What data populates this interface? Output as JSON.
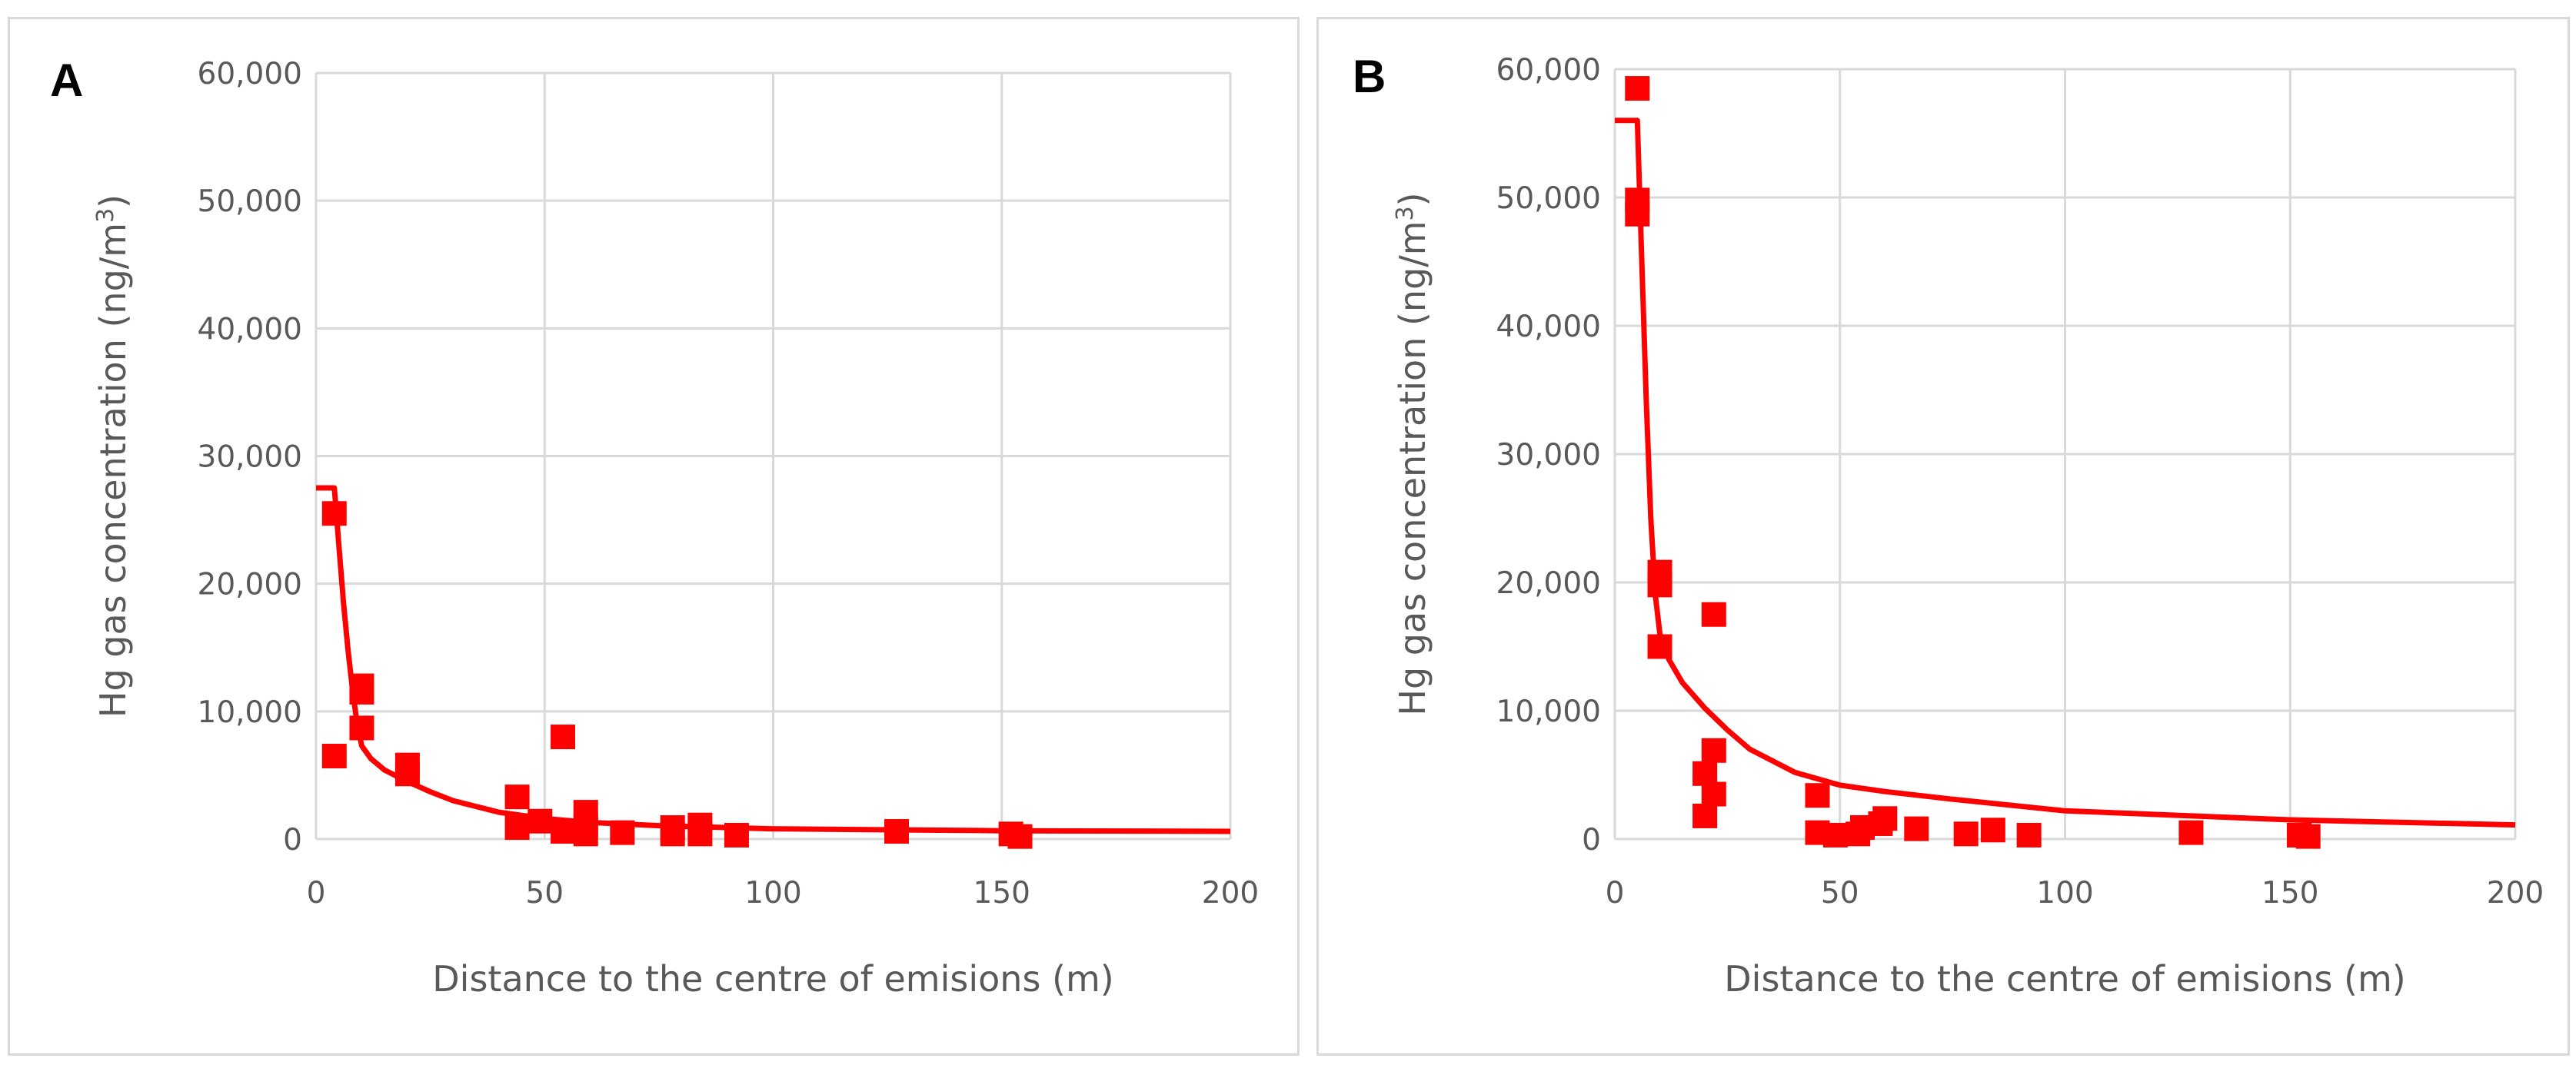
{
  "chart_data": [
    {
      "type": "scatter",
      "panel_label": "A",
      "xlabel": "Distance to the centre of emisions (m)",
      "ylabel": "Hg gas concentration (ng/m",
      "ylabel_sup": "3",
      "ylabel_end": ")",
      "xlim": [
        0,
        200
      ],
      "ylim": [
        0,
        60000
      ],
      "x_ticks": [
        0,
        50,
        100,
        150,
        200
      ],
      "y_ticks": [
        0,
        10000,
        20000,
        30000,
        40000,
        50000,
        60000
      ],
      "x_tick_labels": [
        "0",
        "50",
        "100",
        "150",
        "200"
      ],
      "y_tick_labels": [
        "0",
        "10,000",
        "20,000",
        "30,000",
        "40,000",
        "50,000",
        "60,000"
      ],
      "marker_color": "#ff0000",
      "line_color": "#ff0000",
      "points": [
        [
          4,
          25500
        ],
        [
          4,
          6500
        ],
        [
          10,
          12000
        ],
        [
          10,
          11500
        ],
        [
          10,
          8700
        ],
        [
          20,
          5800
        ],
        [
          20,
          5100
        ],
        [
          44,
          3300
        ],
        [
          44,
          900
        ],
        [
          49,
          1400
        ],
        [
          54,
          8000
        ],
        [
          54,
          600
        ],
        [
          59,
          2100
        ],
        [
          59,
          1100
        ],
        [
          59,
          400
        ],
        [
          67,
          500
        ],
        [
          78,
          900
        ],
        [
          78,
          400
        ],
        [
          84,
          1100
        ],
        [
          84,
          400
        ],
        [
          92,
          300
        ],
        [
          127,
          600
        ],
        [
          152,
          400
        ],
        [
          154,
          200
        ]
      ],
      "fit_line": [
        [
          0,
          27500
        ],
        [
          4,
          27500
        ],
        [
          5,
          23000
        ],
        [
          6,
          18500
        ],
        [
          7,
          14800
        ],
        [
          8,
          11600
        ],
        [
          9,
          9000
        ],
        [
          10,
          7300
        ],
        [
          12,
          6300
        ],
        [
          15,
          5400
        ],
        [
          20,
          4500
        ],
        [
          25,
          3700
        ],
        [
          30,
          3000
        ],
        [
          40,
          2100
        ],
        [
          50,
          1600
        ],
        [
          60,
          1300
        ],
        [
          75,
          1050
        ],
        [
          100,
          800
        ],
        [
          150,
          650
        ],
        [
          200,
          600
        ]
      ]
    },
    {
      "type": "scatter",
      "panel_label": "B",
      "xlabel": "Distance to the centre of emisions (m)",
      "ylabel": "Hg gas concentration (ng/m",
      "ylabel_sup": "3",
      "ylabel_end": ")",
      "xlim": [
        0,
        200
      ],
      "ylim": [
        0,
        60000
      ],
      "x_ticks": [
        0,
        50,
        100,
        150,
        200
      ],
      "y_ticks": [
        0,
        10000,
        20000,
        30000,
        40000,
        50000,
        60000
      ],
      "x_tick_labels": [
        "0",
        "50",
        "100",
        "150",
        "200"
      ],
      "y_tick_labels": [
        "0",
        "10,000",
        "20,000",
        "30,000",
        "40,000",
        "50,000",
        "60,000"
      ],
      "marker_color": "#ff0000",
      "line_color": "#ff0000",
      "points": [
        [
          5,
          58500
        ],
        [
          5,
          49800
        ],
        [
          5,
          48700
        ],
        [
          10,
          20800
        ],
        [
          10,
          19800
        ],
        [
          10,
          15000
        ],
        [
          20,
          5100
        ],
        [
          20,
          1800
        ],
        [
          22,
          17500
        ],
        [
          22,
          6900
        ],
        [
          22,
          3500
        ],
        [
          45,
          3400
        ],
        [
          45,
          500
        ],
        [
          49,
          300
        ],
        [
          54,
          400
        ],
        [
          55,
          900
        ],
        [
          59,
          1200
        ],
        [
          60,
          1600
        ],
        [
          67,
          800
        ],
        [
          78,
          400
        ],
        [
          84,
          700
        ],
        [
          92,
          300
        ],
        [
          128,
          500
        ],
        [
          152,
          300
        ],
        [
          154,
          200
        ]
      ],
      "fit_line": [
        [
          0,
          56000
        ],
        [
          5,
          56000
        ],
        [
          6,
          45000
        ],
        [
          7,
          34000
        ],
        [
          8,
          25000
        ],
        [
          9,
          19000
        ],
        [
          10,
          16000
        ],
        [
          12,
          14000
        ],
        [
          15,
          12200
        ],
        [
          20,
          10200
        ],
        [
          25,
          8500
        ],
        [
          30,
          7000
        ],
        [
          40,
          5200
        ],
        [
          50,
          4200
        ],
        [
          60,
          3700
        ],
        [
          75,
          3100
        ],
        [
          100,
          2200
        ],
        [
          150,
          1500
        ],
        [
          200,
          1100
        ]
      ]
    }
  ]
}
